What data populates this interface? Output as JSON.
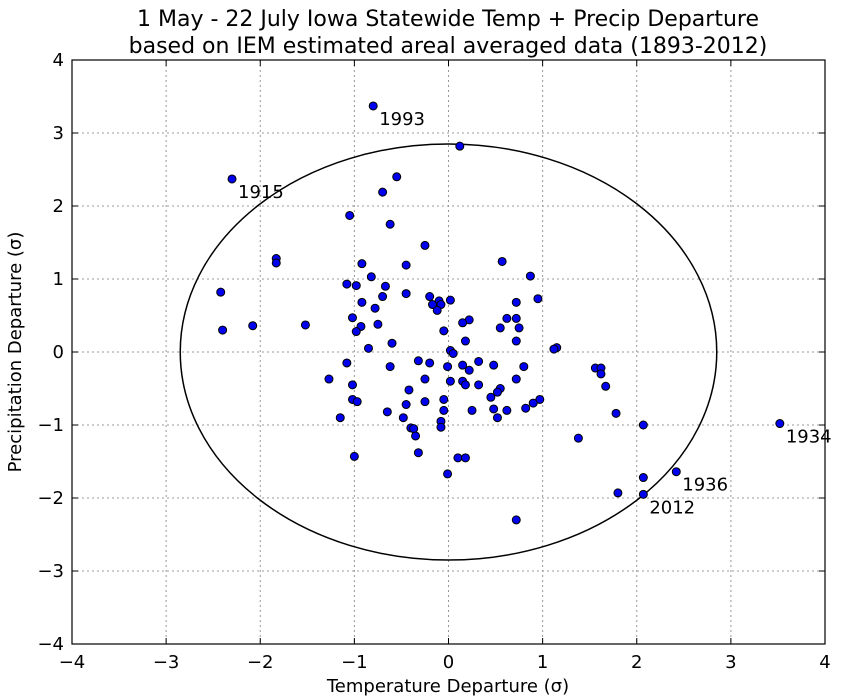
{
  "chart_data": {
    "type": "scatter",
    "title": "1 May - 22 July Iowa Statewide Temp + Precip Departure",
    "subtitle": "based on IEM estimated areal averaged data (1893-2012)",
    "xlabel": "Temperature Departure (σ)",
    "ylabel": "Precipitation Departure (σ)",
    "xlim": [
      -4,
      4
    ],
    "ylim": [
      -4,
      4
    ],
    "xticks": [
      -4,
      -3,
      -2,
      -1,
      0,
      1,
      2,
      3,
      4
    ],
    "yticks": [
      -4,
      -3,
      -2,
      -1,
      0,
      1,
      2,
      3,
      4
    ],
    "x_tick_labels": [
      "−4",
      "−3",
      "−2",
      "−1",
      "0",
      "1",
      "2",
      "3",
      "4"
    ],
    "y_tick_labels": [
      "−4",
      "−3",
      "−2",
      "−1",
      "0",
      "1",
      "2",
      "3",
      "4"
    ],
    "grid": true,
    "point_color": "#0000ee",
    "ellipse": {
      "cx": 0,
      "cy": 0,
      "rx": 2.85,
      "ry": 2.85
    },
    "annotations": [
      {
        "label": "1993",
        "x": -0.8,
        "y": 3.37
      },
      {
        "label": "1915",
        "x": -2.3,
        "y": 2.37
      },
      {
        "label": "1934",
        "x": 3.52,
        "y": -0.98
      },
      {
        "label": "1936",
        "x": 2.42,
        "y": -1.64
      },
      {
        "label": "2012",
        "x": 2.07,
        "y": -1.95
      }
    ],
    "points": [
      [
        -0.8,
        3.37
      ],
      [
        0.12,
        2.82
      ],
      [
        -2.3,
        2.37
      ],
      [
        -0.55,
        2.4
      ],
      [
        -0.7,
        2.19
      ],
      [
        -1.05,
        1.87
      ],
      [
        -0.62,
        1.75
      ],
      [
        -0.25,
        1.46
      ],
      [
        -1.83,
        1.28
      ],
      [
        -1.83,
        1.22
      ],
      [
        0.57,
        1.24
      ],
      [
        -0.92,
        1.21
      ],
      [
        -0.45,
        1.19
      ],
      [
        0.87,
        1.04
      ],
      [
        -0.82,
        1.03
      ],
      [
        -1.08,
        0.93
      ],
      [
        -0.98,
        0.91
      ],
      [
        -0.67,
        0.9
      ],
      [
        -2.42,
        0.82
      ],
      [
        -0.45,
        0.8
      ],
      [
        -0.2,
        0.76
      ],
      [
        -0.1,
        0.7
      ],
      [
        0.02,
        0.71
      ],
      [
        -0.7,
        0.76
      ],
      [
        -0.92,
        0.68
      ],
      [
        -0.78,
        0.6
      ],
      [
        -0.17,
        0.65
      ],
      [
        -0.08,
        0.65
      ],
      [
        0.95,
        0.73
      ],
      [
        0.72,
        0.68
      ],
      [
        -0.12,
        0.57
      ],
      [
        -1.02,
        0.47
      ],
      [
        0.62,
        0.46
      ],
      [
        0.72,
        0.46
      ],
      [
        0.22,
        0.44
      ],
      [
        0.15,
        0.4
      ],
      [
        -0.75,
        0.38
      ],
      [
        -2.08,
        0.36
      ],
      [
        -1.52,
        0.37
      ],
      [
        -2.4,
        0.3
      ],
      [
        -0.93,
        0.35
      ],
      [
        -0.98,
        0.28
      ],
      [
        0.55,
        0.33
      ],
      [
        0.75,
        0.33
      ],
      [
        -0.05,
        0.29
      ],
      [
        0.72,
        0.15
      ],
      [
        -0.6,
        0.12
      ],
      [
        0.18,
        0.15
      ],
      [
        1.15,
        0.06
      ],
      [
        1.12,
        0.04
      ],
      [
        -0.85,
        0.05
      ],
      [
        0.02,
        0.02
      ],
      [
        0.05,
        -0.02
      ],
      [
        -0.32,
        -0.12
      ],
      [
        -1.08,
        -0.15
      ],
      [
        -0.2,
        -0.15
      ],
      [
        0.32,
        -0.13
      ],
      [
        0.15,
        -0.18
      ],
      [
        -0.01,
        -0.2
      ],
      [
        0.48,
        -0.18
      ],
      [
        0.22,
        -0.25
      ],
      [
        -0.62,
        -0.2
      ],
      [
        0.8,
        -0.2
      ],
      [
        1.56,
        -0.22
      ],
      [
        1.62,
        -0.22
      ],
      [
        1.62,
        -0.3
      ],
      [
        -1.27,
        -0.37
      ],
      [
        -0.25,
        -0.37
      ],
      [
        0.02,
        -0.4
      ],
      [
        0.15,
        -0.4
      ],
      [
        0.72,
        -0.37
      ],
      [
        -1.02,
        -0.45
      ],
      [
        0.18,
        -0.45
      ],
      [
        0.32,
        -0.45
      ],
      [
        1.67,
        -0.47
      ],
      [
        -0.42,
        -0.52
      ],
      [
        0.55,
        -0.5
      ],
      [
        -0.05,
        -0.65
      ],
      [
        0.52,
        -0.55
      ],
      [
        -1.02,
        -0.65
      ],
      [
        -0.97,
        -0.68
      ],
      [
        -0.25,
        -0.68
      ],
      [
        0.45,
        -0.62
      ],
      [
        0.97,
        -0.65
      ],
      [
        0.9,
        -0.7
      ],
      [
        -0.45,
        -0.72
      ],
      [
        0.48,
        -0.78
      ],
      [
        0.62,
        -0.8
      ],
      [
        -1.15,
        -0.9
      ],
      [
        -0.48,
        -0.9
      ],
      [
        -0.65,
        -0.82
      ],
      [
        -0.05,
        -0.8
      ],
      [
        0.25,
        -0.8
      ],
      [
        0.52,
        -0.9
      ],
      [
        0.82,
        -0.77
      ],
      [
        1.78,
        -0.84
      ],
      [
        -0.08,
        -0.95
      ],
      [
        -0.4,
        -1.04
      ],
      [
        -0.37,
        -1.05
      ],
      [
        -0.08,
        -1.03
      ],
      [
        2.07,
        -1.0
      ],
      [
        3.52,
        -0.98
      ],
      [
        -0.35,
        -1.15
      ],
      [
        1.38,
        -1.18
      ],
      [
        -0.32,
        -1.38
      ],
      [
        -1.0,
        -1.43
      ],
      [
        0.1,
        -1.45
      ],
      [
        0.18,
        -1.45
      ],
      [
        -0.01,
        -1.67
      ],
      [
        2.42,
        -1.64
      ],
      [
        2.07,
        -1.72
      ],
      [
        1.8,
        -1.93
      ],
      [
        2.07,
        -1.95
      ],
      [
        0.72,
        -2.3
      ]
    ]
  }
}
